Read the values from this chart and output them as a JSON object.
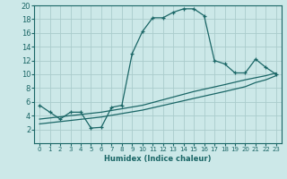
{
  "title": "",
  "xlabel": "Humidex (Indice chaleur)",
  "bg_color": "#cce8e8",
  "line_color": "#1a6666",
  "grid_color": "#aacccc",
  "xlim": [
    -0.5,
    23.5
  ],
  "ylim": [
    0,
    20
  ],
  "xticks": [
    0,
    1,
    2,
    3,
    4,
    5,
    6,
    7,
    8,
    9,
    10,
    11,
    12,
    13,
    14,
    15,
    16,
    17,
    18,
    19,
    20,
    21,
    22,
    23
  ],
  "yticks": [
    2,
    4,
    6,
    8,
    10,
    12,
    14,
    16,
    18,
    20
  ],
  "line1_x": [
    0,
    1,
    2,
    3,
    4,
    5,
    6,
    7,
    8,
    9,
    10,
    11,
    12,
    13,
    14,
    15,
    16,
    17,
    18,
    19,
    20,
    21,
    22,
    23
  ],
  "line1_y": [
    5.5,
    4.5,
    3.5,
    4.5,
    4.5,
    2.2,
    2.3,
    5.2,
    5.5,
    13.0,
    16.2,
    18.2,
    18.2,
    19.0,
    19.5,
    19.5,
    18.5,
    12.0,
    11.5,
    10.2,
    10.2,
    12.2,
    11.0,
    10.0
  ],
  "line2_x": [
    0,
    6,
    10,
    15,
    18,
    20,
    21,
    22,
    23
  ],
  "line2_y": [
    3.5,
    4.5,
    5.5,
    7.5,
    8.5,
    9.2,
    9.5,
    9.8,
    10.2
  ],
  "line3_x": [
    0,
    6,
    10,
    15,
    18,
    20,
    21,
    22,
    23
  ],
  "line3_y": [
    2.8,
    3.8,
    4.8,
    6.5,
    7.5,
    8.2,
    8.8,
    9.2,
    9.8
  ]
}
